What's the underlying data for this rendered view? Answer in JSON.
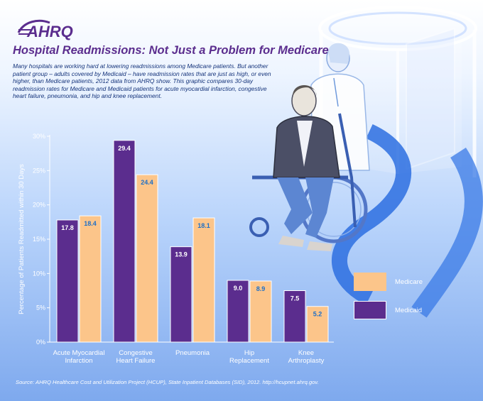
{
  "brand": {
    "logo_text": "AHRQ"
  },
  "header": {
    "title": "Hospital Readmissions:  Not Just a Problem for Medicare",
    "intro": "Many hospitals are working hard at lowering readmissions among Medicare patients. But another patient group – adults covered by Medicaid – have readmission rates that are just as high, or even higher, than Medicare patients, 2012 data from AHRQ show.  This graphic compares 30-day readmission rates for Medicare and Medicaid patients for acute myocardial infarction, congestive heart failure, pneumonia, and hip and knee replacement."
  },
  "footer": {
    "source": "Source:  AHRQ Healthcare Cost and Utilization Project (HCUP), State Inpatient Databases (SID), 2012. http://hcupnet.ahrq.gov."
  },
  "colors": {
    "medicaid": "#5b2d8e",
    "medicare": "#fcc58a",
    "title": "#5b2d8e",
    "axis_text": "#ffffff"
  },
  "chart_data": {
    "type": "bar",
    "title": "",
    "xlabel": "",
    "ylabel": "Percentage of Patients Readmitted within 30 Days",
    "ylim": [
      0,
      30
    ],
    "yticks": [
      0,
      5,
      10,
      15,
      20,
      25,
      30
    ],
    "ytick_labels": [
      "0%",
      "5%",
      "10%",
      "15%",
      "20%",
      "25%",
      "30%"
    ],
    "categories": [
      [
        "Acute Myocardial",
        "Infarction"
      ],
      [
        "Congestive",
        "Heart Failure"
      ],
      [
        "Pneumonia"
      ],
      [
        "Hip",
        "Replacement"
      ],
      [
        "Knee",
        "Arthroplasty"
      ]
    ],
    "series": [
      {
        "name": "Medicaid",
        "values": [
          17.8,
          29.4,
          13.9,
          9.0,
          7.5
        ],
        "labels": [
          "17.8",
          "29.4",
          "13.9",
          "9.0",
          "7.5"
        ]
      },
      {
        "name": "Medicare",
        "values": [
          18.4,
          24.4,
          18.1,
          8.9,
          5.2
        ],
        "labels": [
          "18.4",
          "24.4",
          "18.1",
          "8.9",
          "5.2"
        ]
      }
    ],
    "grid": false,
    "legend": {
      "placement": "right",
      "order": [
        "Medicare",
        "Medicaid"
      ]
    }
  }
}
